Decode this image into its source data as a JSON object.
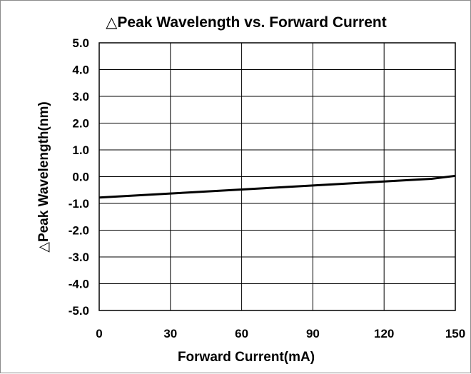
{
  "chart_data": {
    "type": "line",
    "title": "△Peak Wavelength vs. Forward Current",
    "xlabel": "Forward Current(mA)",
    "ylabel": "△Peak Wavelength(nm)",
    "xlim": [
      0,
      150
    ],
    "ylim": [
      -5.0,
      5.0
    ],
    "xticks": [
      "0",
      "30",
      "60",
      "90",
      "120",
      "150"
    ],
    "yticks": [
      "5.0",
      "4.0",
      "3.0",
      "2.0",
      "1.0",
      "0.0",
      "-1.0",
      "-2.0",
      "-3.0",
      "-4.0",
      "-5.0"
    ],
    "grid": true,
    "series": [
      {
        "x": [
          0,
          10,
          20,
          30,
          40,
          50,
          60,
          70,
          80,
          90,
          100,
          110,
          120,
          130,
          140,
          150
        ],
        "y": [
          -0.78,
          -0.73,
          -0.68,
          -0.63,
          -0.58,
          -0.53,
          -0.48,
          -0.43,
          -0.38,
          -0.33,
          -0.28,
          -0.23,
          -0.18,
          -0.13,
          -0.08,
          0.03
        ],
        "color": "#000000"
      }
    ]
  }
}
